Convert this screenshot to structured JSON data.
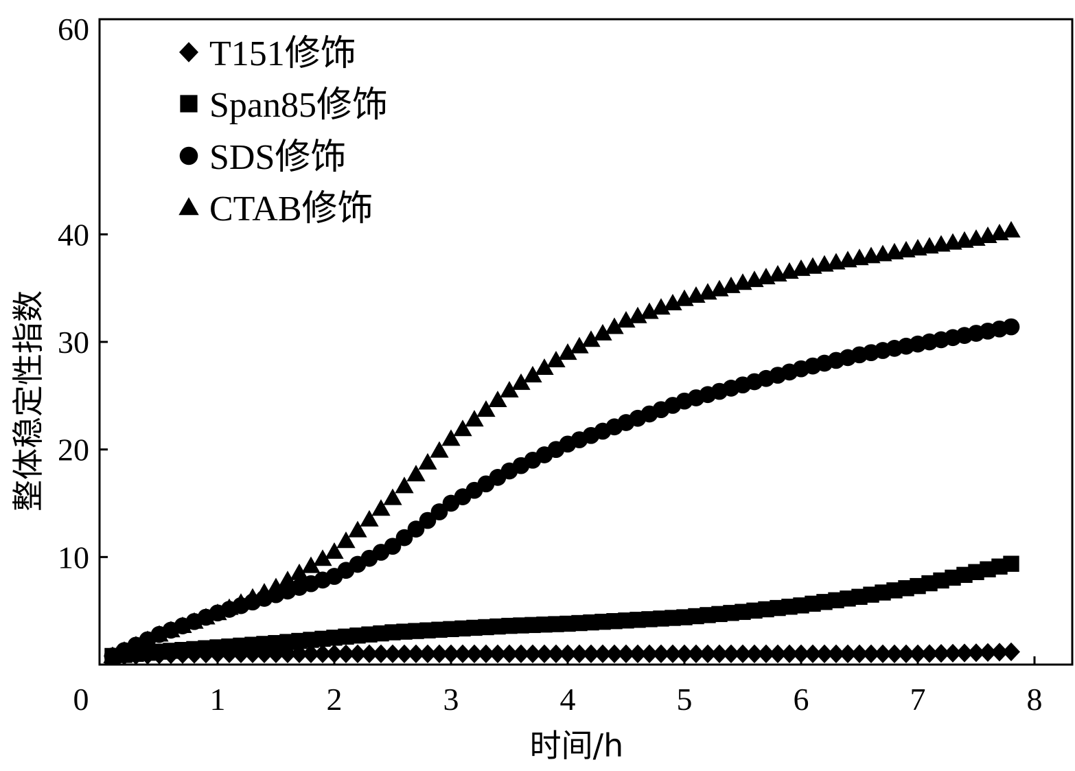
{
  "chart_data": {
    "type": "scatter",
    "xlabel": "时间/h",
    "ylabel": "整体稳定性指数",
    "xlim": [
      0,
      8
    ],
    "ylim": [
      0,
      60
    ],
    "xticks": [
      "0",
      "1",
      "2",
      "3",
      "4",
      "5",
      "6",
      "7",
      "8"
    ],
    "yticks": [
      "10",
      "20",
      "30",
      "40",
      "60"
    ],
    "grid": false,
    "legend_position": "top-left",
    "series": [
      {
        "name": "T151修饰",
        "marker": "diamond",
        "color": "#000000",
        "x": [
          0.1,
          0.5,
          1,
          1.5,
          2,
          2.5,
          3,
          3.5,
          4,
          4.5,
          5,
          5.5,
          6,
          6.5,
          7,
          7.5,
          7.85
        ],
        "y": [
          0.8,
          0.9,
          1.0,
          1.0,
          1.0,
          1.0,
          1.0,
          1.0,
          1.0,
          1.0,
          1.0,
          1.0,
          1.0,
          1.0,
          1.0,
          1.1,
          1.2
        ]
      },
      {
        "name": "Span85修饰",
        "marker": "square",
        "color": "#000000",
        "x": [
          0.1,
          0.5,
          1,
          1.5,
          2,
          2.5,
          3,
          3.5,
          4,
          4.5,
          5,
          5.5,
          6,
          6.5,
          7,
          7.5,
          7.85
        ],
        "y": [
          0.8,
          1.2,
          1.6,
          2.0,
          2.5,
          3.0,
          3.3,
          3.6,
          3.8,
          4.1,
          4.4,
          4.9,
          5.5,
          6.3,
          7.3,
          8.6,
          9.5
        ]
      },
      {
        "name": "SDS修饰",
        "marker": "circle",
        "color": "#000000",
        "x": [
          0.1,
          0.5,
          1,
          1.5,
          2,
          2.5,
          3,
          3.5,
          4,
          4.5,
          5,
          5.5,
          6,
          6.5,
          7,
          7.5,
          7.85
        ],
        "y": [
          0.8,
          2.8,
          4.8,
          6.5,
          8.2,
          11.0,
          15.0,
          18.0,
          20.5,
          22.5,
          24.5,
          26.0,
          27.5,
          28.8,
          29.8,
          30.8,
          31.5
        ]
      },
      {
        "name": "CTAB修饰",
        "marker": "triangle",
        "color": "#000000",
        "x": [
          0.1,
          0.5,
          1,
          1.5,
          2,
          2.5,
          3,
          3.5,
          4,
          4.5,
          5,
          5.5,
          6,
          6.5,
          7,
          7.5,
          7.85
        ],
        "y": [
          0.8,
          2.8,
          4.8,
          7.2,
          10.5,
          15.5,
          21.0,
          25.5,
          29.0,
          32.0,
          34.0,
          35.5,
          36.8,
          37.8,
          38.7,
          39.6,
          40.5
        ]
      }
    ]
  }
}
